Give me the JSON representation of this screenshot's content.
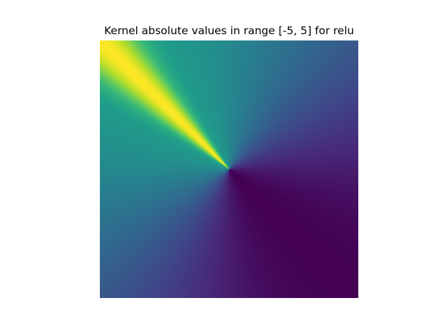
{
  "chart_data": {
    "type": "heatmap",
    "title": "Kernel absolute values in range [-5, 5] for relu",
    "xlabel": "",
    "ylabel": "",
    "x_range": [
      -5,
      5
    ],
    "y_range": [
      -5,
      5
    ],
    "axes_visible": false,
    "grid": false,
    "colormap": "viridis",
    "colormap_stops": [
      "#440154",
      "#482878",
      "#3e4a89",
      "#31688e",
      "#26828e",
      "#1f9e89",
      "#35b779",
      "#6ece58",
      "#b5de2b",
      "#fde725"
    ],
    "field": {
      "description": "absolute kernel value varies with direction from center",
      "peak_direction": "upper-left",
      "min_direction": "lower-right"
    }
  }
}
